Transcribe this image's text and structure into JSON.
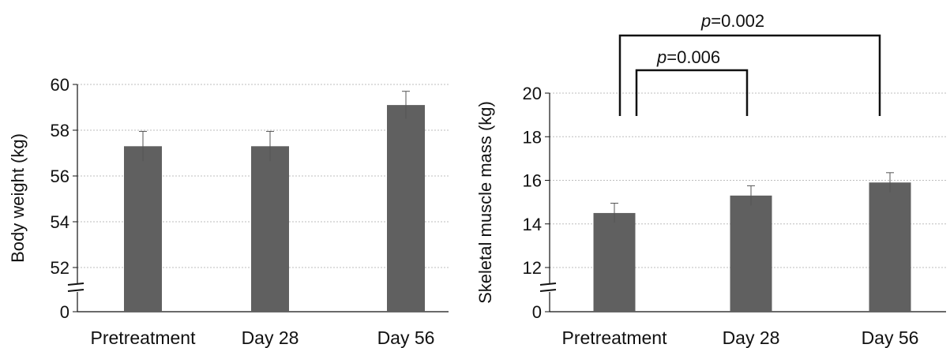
{
  "chart_data": [
    {
      "type": "bar",
      "title": "",
      "xlabel": "",
      "ylabel": "Body weight (kg)",
      "categories": [
        "Pretreatment",
        "Day 28",
        "Day 56"
      ],
      "values": [
        57.3,
        57.3,
        59.1
      ],
      "errors": [
        0.65,
        0.65,
        0.6
      ],
      "ylim": [
        50,
        60
      ],
      "yticks": [
        52,
        54,
        56,
        58,
        60
      ],
      "axis_origin_label": "0",
      "axis_break": true,
      "grid": true,
      "bar_color": "#606060",
      "annotations": []
    },
    {
      "type": "bar",
      "title": "",
      "xlabel": "",
      "ylabel": "Skeletal muscle mass (kg)",
      "categories": [
        "Pretreatment",
        "Day 28",
        "Day 56"
      ],
      "values": [
        14.5,
        15.3,
        15.9
      ],
      "errors": [
        0.45,
        0.45,
        0.45
      ],
      "ylim": [
        10,
        20
      ],
      "yticks": [
        12,
        14,
        16,
        18,
        20
      ],
      "axis_origin_label": "0",
      "axis_break": true,
      "grid": true,
      "bar_color": "#606060",
      "annotations": [
        {
          "from": "Pretreatment",
          "to": "Day 28",
          "label_prefix": "p",
          "label_value": "=0.006"
        },
        {
          "from": "Pretreatment",
          "to": "Day 56",
          "label_prefix": "p",
          "label_value": "=0.002"
        }
      ]
    }
  ]
}
